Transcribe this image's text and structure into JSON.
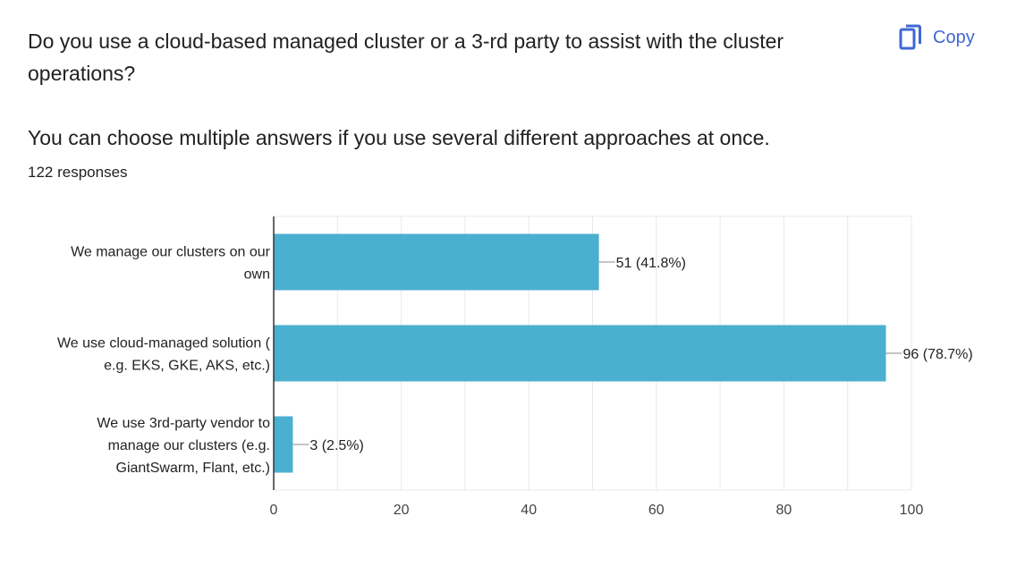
{
  "question": {
    "line1": "Do you use a cloud-based managed cluster or a 3-rd party to assist with the cluster",
    "line2": "operations?",
    "line3": "You can choose multiple answers if you use several different approaches at once."
  },
  "responses_label": "122 responses",
  "copy_button": {
    "label": "Copy",
    "icon": "copy-icon"
  },
  "colors": {
    "bar": "#4bafcf",
    "accent": "#3f67d6",
    "grid": "#e8e8e8",
    "axis": "#333333"
  },
  "chart_data": {
    "type": "bar",
    "orientation": "horizontal",
    "categories": [
      [
        "We manage our clusters on our",
        "own"
      ],
      [
        "We use cloud-managed solution (",
        "e.g. EKS, GKE, AKS, etc.)"
      ],
      [
        "We use 3rd-party vendor to",
        "manage our clusters (e.g.",
        "GiantSwarm, Flant, etc.)"
      ]
    ],
    "values": [
      51,
      96,
      3
    ],
    "data_labels": [
      "51 (41.8%)",
      "96 (78.7%)",
      "3 (2.5%)"
    ],
    "xlim": [
      0,
      100
    ],
    "xticks": [
      0,
      20,
      40,
      60,
      80,
      100
    ],
    "grid": true,
    "legend": "none"
  }
}
